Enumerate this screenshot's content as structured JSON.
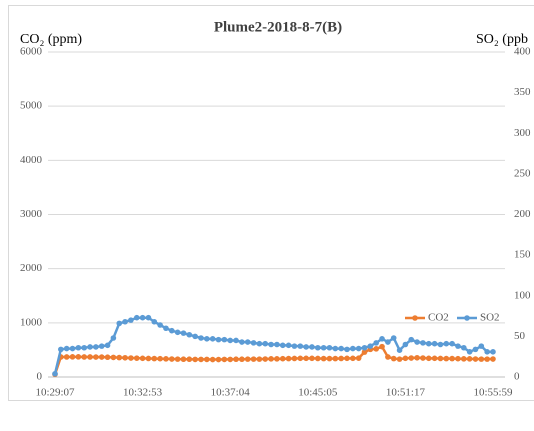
{
  "chart_data": {
    "type": "line",
    "title": "Plume2-2018-8-7(B)",
    "y_label": "CO₂ (ppm)",
    "y2_label": "SO₂ (ppb",
    "categories": [
      "10:29:07",
      null,
      null,
      null,
      null,
      null,
      null,
      null,
      null,
      null,
      null,
      null,
      null,
      null,
      null,
      "10:32:53",
      null,
      null,
      null,
      null,
      null,
      null,
      null,
      null,
      null,
      null,
      null,
      null,
      null,
      null,
      "10:37:04",
      null,
      null,
      null,
      null,
      null,
      null,
      null,
      null,
      null,
      null,
      null,
      null,
      null,
      null,
      "10:45:05",
      null,
      null,
      null,
      null,
      null,
      null,
      null,
      null,
      null,
      null,
      null,
      null,
      null,
      null,
      "10:51:17",
      null,
      null,
      null,
      null,
      null,
      null,
      null,
      null,
      null,
      null,
      null,
      null,
      null,
      null,
      "10:55:59"
    ],
    "series": [
      {
        "name": "CO2",
        "color": "#ed7d31",
        "values": [
          50,
          370,
          370,
          372,
          372,
          370,
          370,
          368,
          368,
          365,
          362,
          358,
          355,
          350,
          348,
          345,
          342,
          340,
          338,
          335,
          332,
          330,
          328,
          328,
          325,
          325,
          325,
          322,
          322,
          325,
          325,
          328,
          328,
          330,
          330,
          330,
          332,
          335,
          335,
          338,
          340,
          342,
          345,
          345,
          345,
          342,
          340,
          340,
          340,
          342,
          345,
          345,
          348,
          460,
          510,
          520,
          560,
          370,
          340,
          330,
          345,
          350,
          355,
          350,
          345,
          345,
          342,
          340,
          340,
          338,
          335,
          335,
          332,
          330,
          330,
          332
        ]
      },
      {
        "name": "SO2",
        "color": "#5b9bd5",
        "axis": "y2",
        "values": [
          4,
          34,
          35,
          35,
          36,
          36,
          37,
          37,
          38,
          39,
          48,
          66,
          68,
          70,
          73,
          73,
          73,
          68,
          64,
          60,
          57,
          55,
          54,
          52,
          50,
          48,
          47,
          47,
          46,
          46,
          45,
          45,
          43,
          43,
          42,
          41,
          41,
          40,
          40,
          39,
          39,
          38,
          38,
          37,
          37,
          36,
          36,
          36,
          35,
          35,
          34,
          35,
          35,
          36,
          38,
          42,
          47,
          43,
          48,
          33,
          40,
          46,
          43,
          42,
          41,
          41,
          40,
          41,
          41,
          38,
          36,
          31,
          34,
          38,
          31,
          31
        ]
      }
    ],
    "ylim": [
      0,
      6000
    ],
    "yticks": [
      0,
      1000,
      2000,
      3000,
      4000,
      5000,
      6000
    ],
    "y2lim": [
      0,
      400
    ],
    "y2ticks": [
      0,
      50,
      100,
      150,
      200,
      250,
      300,
      350,
      400
    ],
    "grid": true
  }
}
